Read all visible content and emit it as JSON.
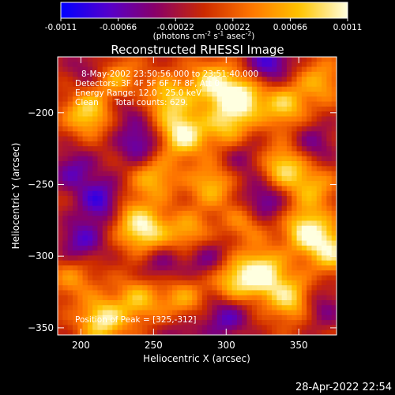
{
  "title": "Reconstructed RHESSI Image",
  "colorbar": {
    "ticks": [
      "-0.0011",
      "-0.00066",
      "-0.00022",
      "0.00022",
      "0.00066",
      "0.0011"
    ],
    "tick_values": [
      -0.0011,
      -0.00066,
      -0.00022,
      0.00022,
      0.00066,
      0.0011
    ],
    "range": [
      -0.0011,
      0.0011
    ],
    "units_prefix": "(photons cm",
    "units_sup1": "-2",
    "units_mid": " s",
    "units_sup2": "-1",
    "units_mid2": " asec",
    "units_sup3": "-2",
    "units_suffix": ")",
    "colors": [
      "#0000ff",
      "#5500cc",
      "#8a0066",
      "#cc2a00",
      "#ff7700",
      "#ffc400",
      "#ffffe0"
    ]
  },
  "overlay": {
    "time_range": "8-May-2002 23:50:56.000 to 23:51:40.000",
    "detectors": "Detectors: 3F 4F 5F 6F 7F 8F, Att 0",
    "energy_range": "Energy Range: 12.0 - 25.0 keV",
    "clean_label": "Clean",
    "total_counts": "Total counts: 629.",
    "peak_position": "Position of Peak = [325,-312]"
  },
  "timestamp": "28-Apr-2022 22:54",
  "chart_data": {
    "type": "heatmap",
    "title": "Reconstructed RHESSI Image",
    "xlabel": "Heliocentric X (arcsec)",
    "ylabel": "Heliocentric Y (arcsec)",
    "xlim": [
      184,
      376
    ],
    "ylim": [
      -355,
      -161
    ],
    "xticks": [
      200,
      250,
      300,
      350
    ],
    "yticks": [
      -200,
      -250,
      -300,
      -350
    ],
    "peak": [
      325,
      -312
    ],
    "value_range": [
      -0.0011,
      0.0011
    ],
    "colormap": "red-temperature with negative blues",
    "sources": [
      {
        "x": 205,
        "y": -200,
        "v": 0.0009
      },
      {
        "x": 225,
        "y": -178,
        "v": 0.0007
      },
      {
        "x": 260,
        "y": -190,
        "v": 0.0008
      },
      {
        "x": 270,
        "y": -215,
        "v": 0.0011
      },
      {
        "x": 290,
        "y": -180,
        "v": 0.0009
      },
      {
        "x": 310,
        "y": -190,
        "v": 0.0011
      },
      {
        "x": 300,
        "y": -210,
        "v": 0.0007
      },
      {
        "x": 340,
        "y": -195,
        "v": 0.0008
      },
      {
        "x": 365,
        "y": -178,
        "v": 0.0006
      },
      {
        "x": 250,
        "y": -245,
        "v": 0.0007
      },
      {
        "x": 290,
        "y": -250,
        "v": 0.0007
      },
      {
        "x": 340,
        "y": -238,
        "v": 0.0009
      },
      {
        "x": 360,
        "y": -252,
        "v": 0.0006
      },
      {
        "x": 245,
        "y": -283,
        "v": 0.001
      },
      {
        "x": 275,
        "y": -285,
        "v": 0.0007
      },
      {
        "x": 315,
        "y": -275,
        "v": 0.0006
      },
      {
        "x": 355,
        "y": -282,
        "v": 0.001
      },
      {
        "x": 372,
        "y": -296,
        "v": 0.0009
      },
      {
        "x": 240,
        "y": -330,
        "v": 0.0007
      },
      {
        "x": 270,
        "y": -330,
        "v": 0.0006
      },
      {
        "x": 305,
        "y": -318,
        "v": 0.0008
      },
      {
        "x": 325,
        "y": -312,
        "v": 0.0011
      },
      {
        "x": 345,
        "y": -330,
        "v": 0.0009
      },
      {
        "x": 215,
        "y": -345,
        "v": 0.001
      },
      {
        "x": 195,
        "y": -315,
        "v": 0.0005
      },
      {
        "x": 230,
        "y": -270,
        "v": 0.0005
      },
      {
        "x": 215,
        "y": -262,
        "v": -0.0009
      },
      {
        "x": 240,
        "y": -222,
        "v": -0.0007
      },
      {
        "x": 330,
        "y": -165,
        "v": -0.0008
      },
      {
        "x": 195,
        "y": -240,
        "v": -0.0006
      },
      {
        "x": 300,
        "y": -342,
        "v": -0.0007
      },
      {
        "x": 200,
        "y": -290,
        "v": -0.0007
      },
      {
        "x": 360,
        "y": -222,
        "v": -0.0005
      },
      {
        "x": 325,
        "y": -263,
        "v": -0.0008
      },
      {
        "x": 285,
        "y": -300,
        "v": -0.0006
      },
      {
        "x": 255,
        "y": -305,
        "v": -0.0005
      },
      {
        "x": 365,
        "y": -335,
        "v": -0.0005
      },
      {
        "x": 205,
        "y": -170,
        "v": -0.0004
      },
      {
        "x": 270,
        "y": -355,
        "v": -0.0004
      },
      {
        "x": 310,
        "y": -232,
        "v": -0.0004
      },
      {
        "x": 230,
        "y": -195,
        "v": -0.0004
      }
    ]
  }
}
